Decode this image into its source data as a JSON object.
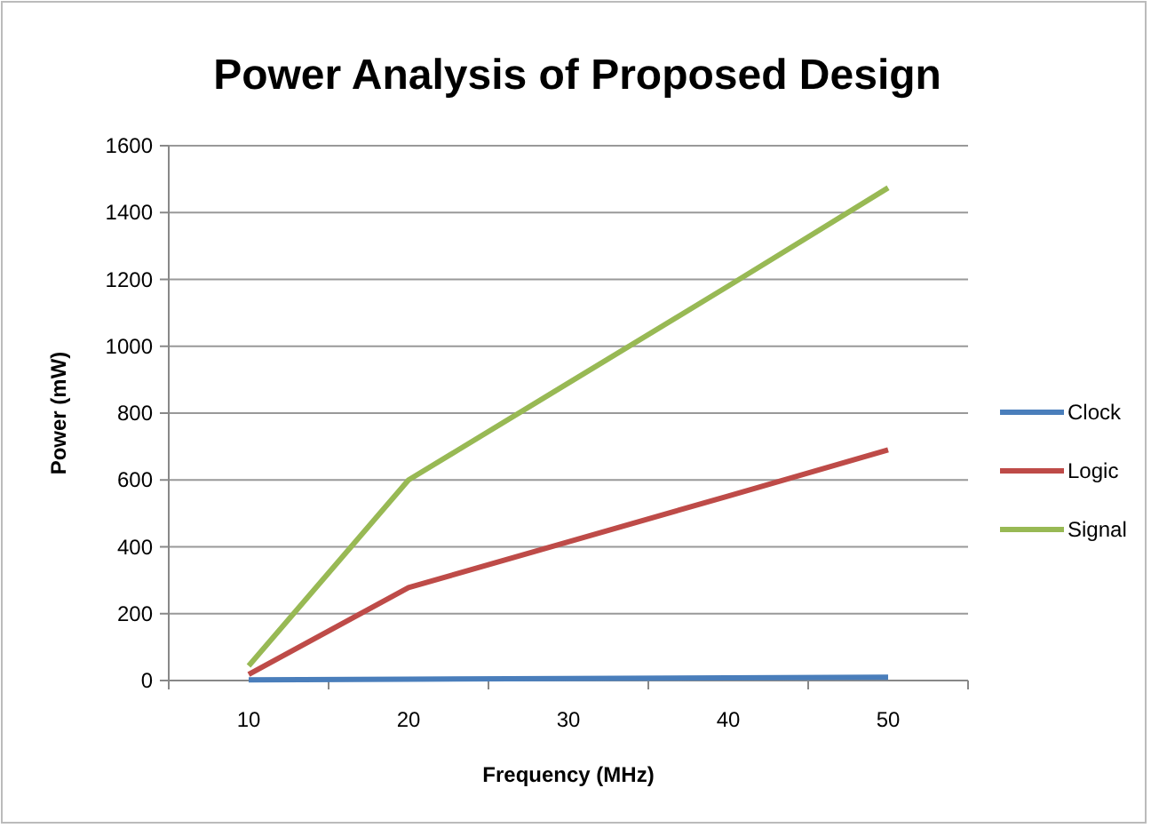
{
  "chart_data": {
    "type": "line",
    "title": "Power Analysis of Proposed Design",
    "xlabel": "Frequency (MHz)",
    "ylabel": "Power (mW)",
    "categories": [
      "10",
      "20",
      "30",
      "40",
      "50"
    ],
    "series": [
      {
        "name": "Clock",
        "color": "#4a7ebb",
        "values": [
          2,
          4,
          6,
          8,
          10
        ]
      },
      {
        "name": "Logic",
        "color": "#be4b48",
        "values": [
          18,
          278,
          415,
          552,
          690
        ]
      },
      {
        "name": "Signal",
        "color": "#98b954",
        "values": [
          44,
          600,
          890,
          1180,
          1474
        ]
      }
    ],
    "ylim": [
      0,
      1600
    ],
    "yticks": [
      0,
      200,
      400,
      600,
      800,
      1000,
      1200,
      1400,
      1600
    ],
    "grid": "y",
    "legend": "right",
    "marker": "none"
  }
}
